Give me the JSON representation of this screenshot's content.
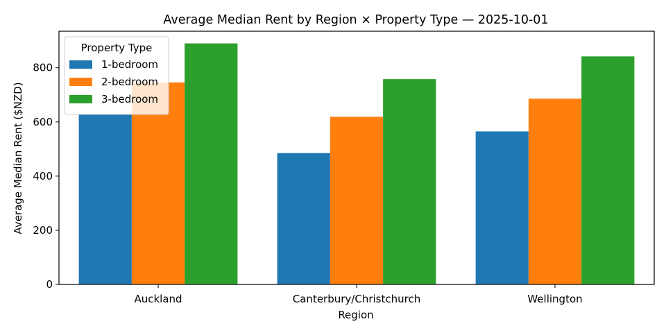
{
  "chart_data": {
    "type": "bar",
    "title": "Average Median Rent by Region × Property Type — 2025-10-01",
    "xlabel": "Region",
    "ylabel": "Average Median Rent ($NZD)",
    "categories": [
      "Auckland",
      "Canterbury/Christchurch",
      "Wellington"
    ],
    "series": [
      {
        "name": "1-bedroom",
        "color": "#1f77b4",
        "values": [
          630,
          485,
          565
        ]
      },
      {
        "name": "2-bedroom",
        "color": "#ff7f0e",
        "values": [
          746,
          619,
          686
        ]
      },
      {
        "name": "3-bedroom",
        "color": "#2ca02c",
        "values": [
          890,
          758,
          842
        ]
      }
    ],
    "ylim": [
      0,
      935
    ],
    "yticks": [
      0,
      200,
      400,
      600,
      800
    ],
    "grid": false,
    "legend": {
      "title": "Property Type",
      "placement": "top-left"
    }
  }
}
